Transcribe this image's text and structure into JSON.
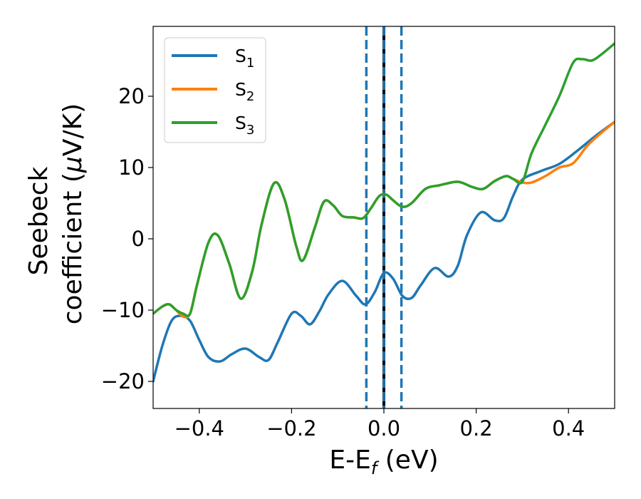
{
  "chart_data": {
    "type": "line",
    "xlabel": {
      "main": "E-E",
      "sub": "f",
      "unit": " (eV)"
    },
    "ylabel": {
      "line1": "Seebeck",
      "line2_pre": "coefficient  (",
      "line2_mu": "μ",
      "line2_post": "V/K)"
    },
    "xlim": [
      -0.5,
      0.5
    ],
    "ylim": [
      -23.8,
      29.8
    ],
    "x_ticks": [
      -0.4,
      -0.2,
      0.0,
      0.2,
      0.4
    ],
    "x_tick_labels": [
      "−0.4",
      "−0.2",
      "0.0",
      "0.2",
      "0.4"
    ],
    "y_ticks": [
      -20,
      -10,
      0,
      10,
      20
    ],
    "y_tick_labels": [
      "−20",
      "−10",
      "0",
      "10",
      "20"
    ],
    "grid": false,
    "legend_position": "top-left",
    "series": [
      {
        "name": "S",
        "sub": "1",
        "color": "#1f77b4",
        "x": [
          -0.5,
          -0.48,
          -0.46,
          -0.44,
          -0.42,
          -0.4,
          -0.38,
          -0.355,
          -0.33,
          -0.3,
          -0.27,
          -0.25,
          -0.23,
          -0.2,
          -0.18,
          -0.16,
          -0.14,
          -0.12,
          -0.09,
          -0.06,
          -0.04,
          -0.02,
          0.0,
          0.02,
          0.04,
          0.06,
          0.08,
          0.11,
          0.14,
          0.16,
          0.18,
          0.21,
          0.24,
          0.26,
          0.28,
          0.3,
          0.34,
          0.38,
          0.42,
          0.46,
          0.5
        ],
        "y": [
          -20,
          -15,
          -11.5,
          -10.8,
          -11.5,
          -14.2,
          -16.6,
          -17.2,
          -16.2,
          -15.4,
          -16.6,
          -17,
          -14.5,
          -10.5,
          -10.8,
          -12,
          -10.2,
          -7.8,
          -5.9,
          -8,
          -9.2,
          -7.5,
          -4.8,
          -5.6,
          -8,
          -8.3,
          -6.5,
          -4.1,
          -5.3,
          -3.8,
          0.5,
          3.7,
          2.6,
          2.9,
          6,
          8.3,
          9.5,
          10.5,
          12.4,
          14.5,
          16.4
        ]
      },
      {
        "name": "S",
        "sub": "2",
        "color": "#ff7f0e",
        "x": [
          -0.5,
          -0.48,
          -0.465,
          -0.45,
          -0.435,
          -0.42,
          -0.405,
          -0.38,
          -0.36,
          -0.335,
          -0.31,
          -0.285,
          -0.265,
          -0.238,
          -0.215,
          -0.19,
          -0.175,
          -0.15,
          -0.13,
          -0.11,
          -0.09,
          -0.065,
          -0.045,
          -0.028,
          -0.01,
          0.005,
          0.02,
          0.04,
          0.06,
          0.09,
          0.12,
          0.16,
          0.19,
          0.215,
          0.24,
          0.265,
          0.28,
          0.3,
          0.32,
          0.35,
          0.38,
          0.41,
          0.44,
          0.47,
          0.5
        ],
        "y": [
          -10.5,
          -9.5,
          -9.2,
          -10,
          -10.9,
          -10.5,
          -6.5,
          -0.5,
          0.5,
          -3.5,
          -8.4,
          -4.5,
          2,
          7.8,
          5.5,
          -1,
          -3,
          1.5,
          5.2,
          4.7,
          3.2,
          3,
          2.9,
          4.3,
          6,
          6.2,
          5.4,
          4.5,
          5,
          7,
          7.5,
          8,
          7.3,
          7,
          8.1,
          8.8,
          8.4,
          7.9,
          7.9,
          8.8,
          10,
          10.6,
          13,
          14.8,
          16.4
        ]
      },
      {
        "name": "S",
        "sub": "3",
        "color": "#2ca02c",
        "x": [
          -0.5,
          -0.48,
          -0.465,
          -0.45,
          -0.435,
          -0.42,
          -0.405,
          -0.38,
          -0.36,
          -0.335,
          -0.31,
          -0.285,
          -0.265,
          -0.238,
          -0.215,
          -0.19,
          -0.175,
          -0.15,
          -0.13,
          -0.11,
          -0.09,
          -0.065,
          -0.045,
          -0.028,
          -0.01,
          0.005,
          0.02,
          0.04,
          0.06,
          0.09,
          0.12,
          0.16,
          0.19,
          0.215,
          0.24,
          0.265,
          0.28,
          0.3,
          0.32,
          0.35,
          0.38,
          0.41,
          0.43,
          0.45,
          0.47,
          0.5
        ],
        "y": [
          -10.5,
          -9.5,
          -9.2,
          -10,
          -10.5,
          -10.5,
          -6.5,
          -0.5,
          0.5,
          -3.5,
          -8.4,
          -4.5,
          2,
          7.8,
          5.5,
          -1,
          -3,
          1.5,
          5.2,
          4.7,
          3.2,
          3,
          2.9,
          4.3,
          6,
          6.2,
          5.4,
          4.5,
          5,
          7,
          7.5,
          8,
          7.3,
          7,
          8.1,
          8.8,
          8.4,
          8,
          12,
          16,
          20,
          24.7,
          25.2,
          25,
          25.8,
          27.4
        ]
      }
    ],
    "vertical_lines": [
      {
        "x": -0.038,
        "style": "dashed",
        "color": "#1f77b4"
      },
      {
        "x": 0.0,
        "style": "solid",
        "color": "#000000"
      },
      {
        "x": 0.0,
        "style": "dashed",
        "color": "#1f77b4"
      },
      {
        "x": 0.038,
        "style": "dashed",
        "color": "#1f77b4"
      }
    ]
  }
}
